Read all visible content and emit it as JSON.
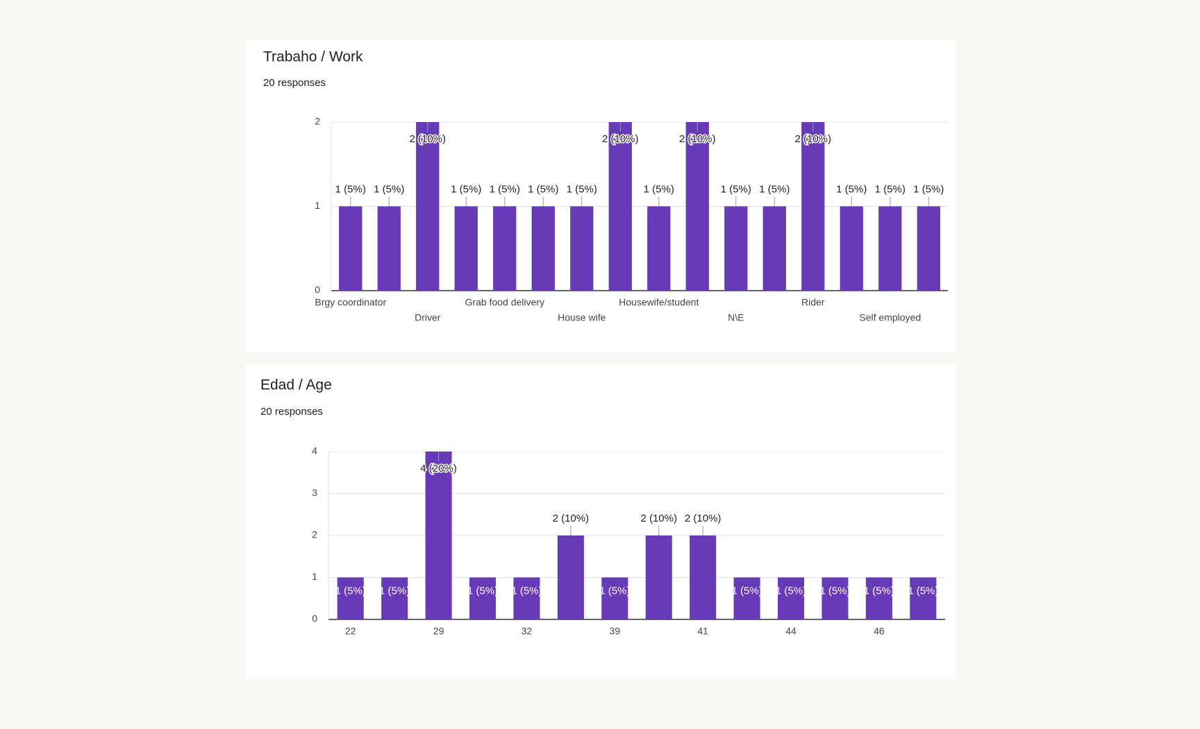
{
  "chart_data": [
    {
      "type": "bar",
      "title": "Trabaho / Work",
      "subtitle": "20 responses",
      "categories": [
        "Brgy coordinator",
        null,
        "Driver",
        null,
        "Grab food delivery",
        null,
        "House wife",
        null,
        "Housewife/student",
        null,
        "N\\E",
        null,
        "Rider",
        null,
        "Self employed",
        null
      ],
      "values": [
        1,
        1,
        2,
        1,
        1,
        1,
        1,
        2,
        1,
        2,
        1,
        1,
        2,
        1,
        1,
        1
      ],
      "value_labels": [
        "1 (5%)",
        "1 (5%)",
        "2 (10%)",
        "1 (5%)",
        "1 (5%)",
        "1 (5%)",
        "1 (5%)",
        "2 (10%)",
        "1 (5%)",
        "2 (10%)",
        "1 (5%)",
        "1 (5%)",
        "2 (10%)",
        "1 (5%)",
        "1 (5%)",
        "1 (5%)"
      ],
      "ylim": [
        0,
        2
      ],
      "yticks": [
        0,
        1,
        2
      ],
      "color": "#673ab7",
      "grid": true
    },
    {
      "type": "bar",
      "title": "Edad / Age",
      "subtitle": "20 responses",
      "categories": [
        "22",
        null,
        "29",
        null,
        "32",
        null,
        "39",
        null,
        "41",
        null,
        "44",
        null,
        "46",
        null
      ],
      "values": [
        1,
        1,
        4,
        1,
        1,
        2,
        1,
        2,
        2,
        1,
        1,
        1,
        1,
        1
      ],
      "value_labels": [
        "1 (5%)",
        "1 (5%)",
        "4 (20%)",
        "1 (5%)",
        "1 (5%)",
        "2 (10%)",
        "1 (5%)",
        "2 (10%)",
        "2 (10%)",
        "1 (5%)",
        "1 (5%)",
        "1 (5%)",
        "1 (5%)",
        "1 (5%)"
      ],
      "ylim": [
        0,
        4
      ],
      "yticks": [
        0,
        1,
        2,
        3,
        4
      ],
      "color": "#673ab7",
      "grid": true
    }
  ]
}
